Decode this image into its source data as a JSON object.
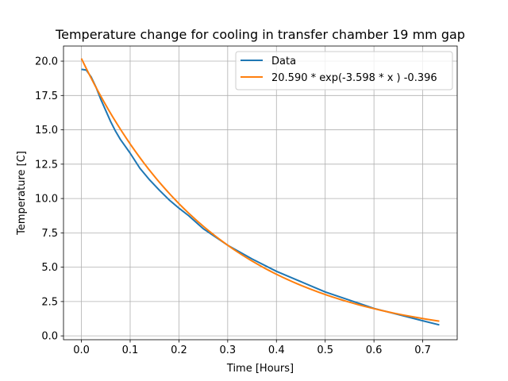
{
  "chart_data": {
    "type": "line",
    "title": "Temperature change for cooling in transfer chamber 19 mm gap",
    "xlabel": "Time [Hours]",
    "ylabel": "Temperature [C]",
    "xlim": [
      -0.0367,
      0.7707
    ],
    "ylim": [
      -0.28,
      21.1
    ],
    "xticks": [
      0.0,
      0.1,
      0.2,
      0.3,
      0.4,
      0.5,
      0.6,
      0.7
    ],
    "xtick_labels": [
      "0.0",
      "0.1",
      "0.2",
      "0.3",
      "0.4",
      "0.5",
      "0.6",
      "0.7"
    ],
    "yticks": [
      0.0,
      2.5,
      5.0,
      7.5,
      10.0,
      12.5,
      15.0,
      17.5,
      20.0
    ],
    "ytick_labels": [
      "0.0",
      "2.5",
      "5.0",
      "7.5",
      "10.0",
      "12.5",
      "15.0",
      "17.5",
      "20.0"
    ],
    "grid": true,
    "legend_position": "top-right",
    "series": [
      {
        "name": "Data",
        "color": "#1f77b4",
        "x": [
          0.0,
          0.01,
          0.02,
          0.03,
          0.04,
          0.05,
          0.06,
          0.07,
          0.08,
          0.09,
          0.1,
          0.12,
          0.14,
          0.16,
          0.18,
          0.2,
          0.22,
          0.25,
          0.3,
          0.35,
          0.4,
          0.45,
          0.5,
          0.55,
          0.6,
          0.65,
          0.7,
          0.734
        ],
        "y": [
          19.4,
          19.35,
          18.85,
          18.1,
          17.2,
          16.4,
          15.6,
          14.9,
          14.3,
          13.8,
          13.3,
          12.2,
          11.35,
          10.6,
          9.9,
          9.3,
          8.75,
          7.8,
          6.6,
          5.6,
          4.7,
          3.95,
          3.2,
          2.6,
          2.0,
          1.55,
          1.1,
          0.8
        ]
      },
      {
        "name": "20.590 * exp(-3.598 * x ) -0.396",
        "color": "#ff7f0e",
        "expression": "20.590 * exp(-3.598 * x ) -0.396",
        "coefficients": {
          "a": 20.59,
          "b": -3.598,
          "c": -0.396
        },
        "x_range": [
          0.0,
          0.734
        ]
      }
    ]
  }
}
